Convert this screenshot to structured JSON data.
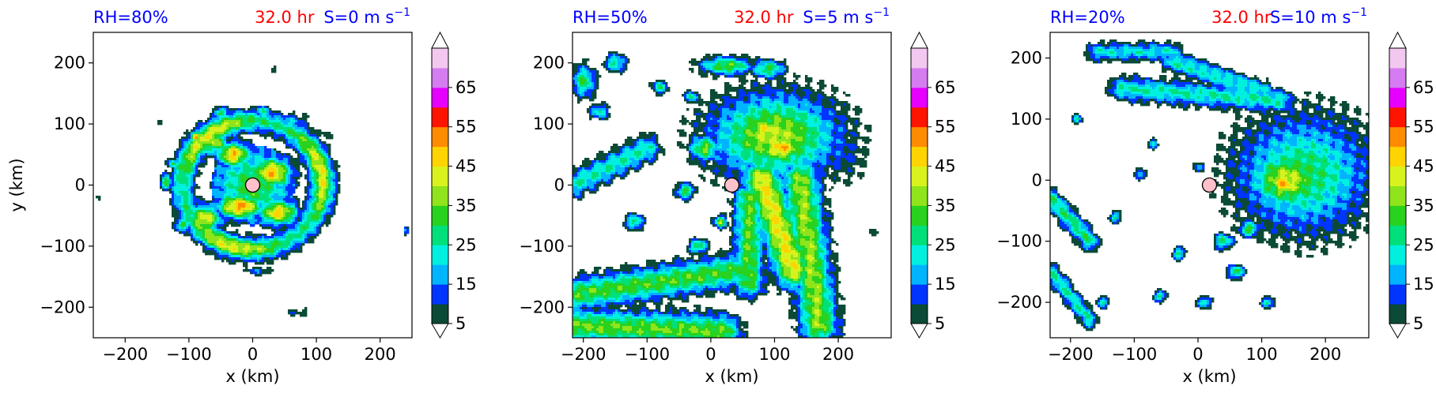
{
  "figure": {
    "panels": [
      {
        "id": "rh80",
        "rh_label": "RH=80%",
        "time_label": "32.0 hr",
        "shear_label": "S=0 m s",
        "shear_exponent": "−1",
        "xlabel": "x (km)",
        "ylabel": "y (km)",
        "xticks": [
          -200,
          -100,
          0,
          100,
          200
        ],
        "yticks": [
          -200,
          -100,
          0,
          100,
          200
        ],
        "tick_label_text": {
          "x": [
            "−200",
            "−100",
            "0",
            "100",
            "200"
          ],
          "y": [
            "−200",
            "−100",
            "0",
            "100",
            "200"
          ]
        },
        "xlim": [
          -250,
          250
        ],
        "ylim": [
          -250,
          250
        ],
        "center": [
          0,
          0
        ]
      },
      {
        "id": "rh50",
        "rh_label": "RH=50%",
        "time_label": "32.0 hr",
        "shear_label": "S=5 m s",
        "shear_exponent": "−1",
        "xlabel": "x (km)",
        "ylabel": "",
        "xticks": [
          -200,
          -100,
          0,
          100,
          200
        ],
        "yticks": [
          -200,
          -100,
          0,
          100,
          200
        ],
        "tick_label_text": {
          "x": [
            "−200",
            "−100",
            "0",
            "100",
            "200"
          ],
          "y": [
            "−200",
            "−100",
            "0",
            "100",
            "200"
          ]
        },
        "xlim": [
          -217,
          283
        ],
        "ylim": [
          -250,
          250
        ],
        "center": [
          33,
          0
        ]
      },
      {
        "id": "rh20",
        "rh_label": "RH=20%",
        "time_label": "32.0 hr",
        "shear_label": "S=10 m s",
        "shear_exponent": "−1",
        "xlabel": "x (km)",
        "ylabel": "",
        "xticks": [
          -200,
          -100,
          0,
          100,
          200
        ],
        "yticks": [
          -200,
          -100,
          0,
          100,
          200
        ],
        "tick_label_text": {
          "x": [
            "−200",
            "−100",
            "0",
            "100",
            "200"
          ],
          "y": [
            "−200",
            "−100",
            "0",
            "100",
            "200"
          ]
        },
        "xlim": [
          -232,
          268
        ],
        "ylim": [
          -258,
          242
        ],
        "center": [
          18,
          -8
        ]
      }
    ],
    "colorbar": {
      "levels": [
        5,
        10,
        15,
        20,
        25,
        30,
        35,
        40,
        45,
        50,
        55,
        60,
        65,
        70
      ],
      "tick_labels": [
        "5",
        "15",
        "25",
        "35",
        "45",
        "55",
        "65"
      ],
      "colors": [
        "#0b4a36",
        "#0034ff",
        "#00b4ff",
        "#00f0e0",
        "#00e07a",
        "#28d21e",
        "#8fe41c",
        "#d8f21e",
        "#ffd400",
        "#ff8c00",
        "#ff1400",
        "#e600ff",
        "#d47cf0",
        "#f3c8f0"
      ],
      "extend": "both"
    },
    "colors": {
      "rh_text": "#0000ff",
      "time_text": "#ff0000",
      "shear_text": "#0000ff",
      "center_marker": "#ffc0cb"
    }
  },
  "chart_data": [
    {
      "type": "heatmap",
      "panel": "RH=80%",
      "xlabel": "x (km)",
      "ylabel": "y (km)",
      "xlim": [
        -250,
        250
      ],
      "ylim": [
        -250,
        250
      ],
      "levels": [
        5,
        10,
        15,
        20,
        25,
        30,
        35,
        40,
        45,
        50,
        55,
        60,
        65,
        70
      ],
      "center_marker": [
        0,
        0
      ],
      "features": [
        {
          "kind": "ring",
          "x": 0,
          "y": 0,
          "rx": 110,
          "ry": 105,
          "peak": 44,
          "width": 18
        },
        {
          "kind": "cell",
          "x": 30,
          "y": 20,
          "rx": 30,
          "ry": 25,
          "value": 50
        },
        {
          "kind": "cell",
          "x": -30,
          "y": 50,
          "rx": 25,
          "ry": 20,
          "value": 50
        },
        {
          "kind": "cell",
          "x": -20,
          "y": -35,
          "rx": 35,
          "ry": 20,
          "value": 52
        },
        {
          "kind": "cell",
          "x": 40,
          "y": -45,
          "rx": 30,
          "ry": 20,
          "value": 48
        },
        {
          "kind": "cell",
          "x": -75,
          "y": -55,
          "rx": 25,
          "ry": 22,
          "value": 45
        },
        {
          "kind": "cell",
          "x": -60,
          "y": 70,
          "rx": 20,
          "ry": 20,
          "value": 40
        },
        {
          "kind": "cell",
          "x": -90,
          "y": 78,
          "rx": 9,
          "ry": 9,
          "value": 50
        },
        {
          "kind": "cell",
          "x": -50,
          "y": 118,
          "rx": 10,
          "ry": 9,
          "value": 35
        },
        {
          "kind": "cell",
          "x": 15,
          "y": 120,
          "rx": 10,
          "ry": 10,
          "value": 28
        },
        {
          "kind": "cell",
          "x": 60,
          "y": 105,
          "rx": 25,
          "ry": 12,
          "value": 18
        },
        {
          "kind": "cell",
          "x": 105,
          "y": 80,
          "rx": 20,
          "ry": 12,
          "value": 8
        },
        {
          "kind": "cell",
          "x": -135,
          "y": 5,
          "rx": 8,
          "ry": 12,
          "value": 35
        },
        {
          "kind": "cell",
          "x": -110,
          "y": -65,
          "rx": 12,
          "ry": 10,
          "value": 33
        },
        {
          "kind": "cell",
          "x": -145,
          "y": 100,
          "rx": 5,
          "ry": 6,
          "value": 8
        },
        {
          "kind": "cell",
          "x": -125,
          "y": 35,
          "rx": 8,
          "ry": 8,
          "value": 30
        },
        {
          "kind": "cell",
          "x": 35,
          "y": 190,
          "rx": 8,
          "ry": 5,
          "value": 10
        },
        {
          "kind": "cell",
          "x": 10,
          "y": -140,
          "rx": 20,
          "ry": 6,
          "value": 15
        },
        {
          "kind": "cell",
          "x": 75,
          "y": -208,
          "rx": 25,
          "ry": 7,
          "value": 8
        },
        {
          "kind": "cell",
          "x": -240,
          "y": -20,
          "rx": 4,
          "ry": 5,
          "value": 12
        },
        {
          "kind": "cell",
          "x": 240,
          "y": -75,
          "rx": 4,
          "ry": 7,
          "value": 20
        }
      ]
    },
    {
      "type": "heatmap",
      "panel": "RH=50%",
      "xlabel": "x (km)",
      "ylabel": "",
      "xlim": [
        -217,
        283
      ],
      "ylim": [
        -250,
        250
      ],
      "levels": [
        5,
        10,
        15,
        20,
        25,
        30,
        35,
        40,
        45,
        50,
        55,
        60,
        65,
        70
      ],
      "center_marker": [
        33,
        0
      ],
      "features": [
        {
          "kind": "cell",
          "x": 100,
          "y": 80,
          "rx": 95,
          "ry": 65,
          "value": 40
        },
        {
          "kind": "cell",
          "x": 110,
          "y": 60,
          "rx": 35,
          "ry": 22,
          "value": 50
        },
        {
          "kind": "cell",
          "x": 85,
          "y": 90,
          "rx": 30,
          "ry": 20,
          "value": 46
        },
        {
          "kind": "cell",
          "x": 200,
          "y": 55,
          "rx": 45,
          "ry": 50,
          "value": 12
        },
        {
          "kind": "band",
          "from": [
            80,
            10
          ],
          "to": [
            130,
            -140
          ],
          "width": 28,
          "value": 45
        },
        {
          "kind": "band",
          "from": [
            140,
            10
          ],
          "to": [
            170,
            -230
          ],
          "width": 28,
          "value": 38
        },
        {
          "kind": "band",
          "from": [
            60,
            -20
          ],
          "to": [
            60,
            -160
          ],
          "width": 22,
          "value": 34
        },
        {
          "kind": "band",
          "from": [
            -217,
            -180
          ],
          "to": [
            40,
            -140
          ],
          "width": 25,
          "value": 33
        },
        {
          "kind": "band",
          "from": [
            -217,
            -230
          ],
          "to": [
            20,
            -240
          ],
          "width": 26,
          "value": 35
        },
        {
          "kind": "band",
          "from": [
            -100,
            60
          ],
          "to": [
            -217,
            0
          ],
          "width": 20,
          "value": 25
        },
        {
          "kind": "cell",
          "x": -200,
          "y": 170,
          "rx": 18,
          "ry": 25,
          "value": 30
        },
        {
          "kind": "cell",
          "x": -150,
          "y": 200,
          "rx": 15,
          "ry": 14,
          "value": 28
        },
        {
          "kind": "cell",
          "x": -175,
          "y": 120,
          "rx": 15,
          "ry": 12,
          "value": 25
        },
        {
          "kind": "cell",
          "x": -80,
          "y": 160,
          "rx": 12,
          "ry": 10,
          "value": 28
        },
        {
          "kind": "cell",
          "x": -10,
          "y": 60,
          "rx": 22,
          "ry": 20,
          "value": 36
        },
        {
          "kind": "cell",
          "x": -40,
          "y": -10,
          "rx": 14,
          "ry": 12,
          "value": 32
        },
        {
          "kind": "cell",
          "x": -120,
          "y": -60,
          "rx": 14,
          "ry": 12,
          "value": 30
        },
        {
          "kind": "cell",
          "x": 25,
          "y": 195,
          "rx": 40,
          "ry": 14,
          "value": 35
        },
        {
          "kind": "cell",
          "x": 90,
          "y": 190,
          "rx": 25,
          "ry": 14,
          "value": 32
        },
        {
          "kind": "cell",
          "x": -30,
          "y": 145,
          "rx": 10,
          "ry": 9,
          "value": 28
        },
        {
          "kind": "cell",
          "x": -20,
          "y": -100,
          "rx": 14,
          "ry": 10,
          "value": 34
        },
        {
          "kind": "cell",
          "x": 15,
          "y": -60,
          "rx": 10,
          "ry": 10,
          "value": 38
        },
        {
          "kind": "cell",
          "x": 255,
          "y": -80,
          "rx": 6,
          "ry": 12,
          "value": 10
        }
      ]
    },
    {
      "type": "heatmap",
      "panel": "RH=20%",
      "xlabel": "x (km)",
      "ylabel": "",
      "xlim": [
        -232,
        268
      ],
      "ylim": [
        -258,
        242
      ],
      "levels": [
        5,
        10,
        15,
        20,
        25,
        30,
        35,
        40,
        45,
        50,
        55,
        60,
        65,
        70
      ],
      "center_marker": [
        18,
        -8
      ],
      "features": [
        {
          "kind": "cell",
          "x": 165,
          "y": 10,
          "rx": 100,
          "ry": 90,
          "value": 30
        },
        {
          "kind": "cell",
          "x": 140,
          "y": 0,
          "rx": 55,
          "ry": 45,
          "value": 42
        },
        {
          "kind": "cell",
          "x": 135,
          "y": -5,
          "rx": 25,
          "ry": 25,
          "value": 50
        },
        {
          "kind": "cell",
          "x": 230,
          "y": 40,
          "rx": 40,
          "ry": 60,
          "value": 15
        },
        {
          "kind": "band",
          "from": [
            -120,
            150
          ],
          "to": [
            130,
            130
          ],
          "width": 18,
          "value": 25
        },
        {
          "kind": "band",
          "from": [
            -40,
            195
          ],
          "to": [
            100,
            145
          ],
          "width": 16,
          "value": 24
        },
        {
          "kind": "band",
          "from": [
            -160,
            210
          ],
          "to": [
            -40,
            210
          ],
          "width": 14,
          "value": 22
        },
        {
          "kind": "band",
          "from": [
            -230,
            -30
          ],
          "to": [
            -170,
            -100
          ],
          "width": 14,
          "value": 28
        },
        {
          "kind": "band",
          "from": [
            -230,
            -150
          ],
          "to": [
            -170,
            -230
          ],
          "width": 12,
          "value": 25
        },
        {
          "kind": "cell",
          "x": 40,
          "y": -100,
          "rx": 14,
          "ry": 12,
          "value": 30
        },
        {
          "kind": "cell",
          "x": 80,
          "y": -80,
          "rx": 14,
          "ry": 12,
          "value": 35
        },
        {
          "kind": "cell",
          "x": 60,
          "y": -150,
          "rx": 12,
          "ry": 10,
          "value": 33
        },
        {
          "kind": "cell",
          "x": -30,
          "y": -120,
          "rx": 10,
          "ry": 9,
          "value": 28
        },
        {
          "kind": "cell",
          "x": 10,
          "y": -200,
          "rx": 10,
          "ry": 8,
          "value": 30
        },
        {
          "kind": "cell",
          "x": -60,
          "y": -190,
          "rx": 10,
          "ry": 8,
          "value": 28
        },
        {
          "kind": "cell",
          "x": -130,
          "y": -60,
          "rx": 9,
          "ry": 8,
          "value": 26
        },
        {
          "kind": "cell",
          "x": -90,
          "y": 10,
          "rx": 8,
          "ry": 8,
          "value": 24
        },
        {
          "kind": "cell",
          "x": -190,
          "y": 100,
          "rx": 8,
          "ry": 8,
          "value": 22
        },
        {
          "kind": "cell",
          "x": -70,
          "y": 60,
          "rx": 8,
          "ry": 7,
          "value": 22
        },
        {
          "kind": "cell",
          "x": 110,
          "y": -200,
          "rx": 10,
          "ry": 8,
          "value": 26
        },
        {
          "kind": "cell",
          "x": -150,
          "y": -200,
          "rx": 9,
          "ry": 8,
          "value": 26
        },
        {
          "kind": "cell",
          "x": 0,
          "y": 20,
          "rx": 8,
          "ry": 7,
          "value": 22
        }
      ]
    }
  ]
}
